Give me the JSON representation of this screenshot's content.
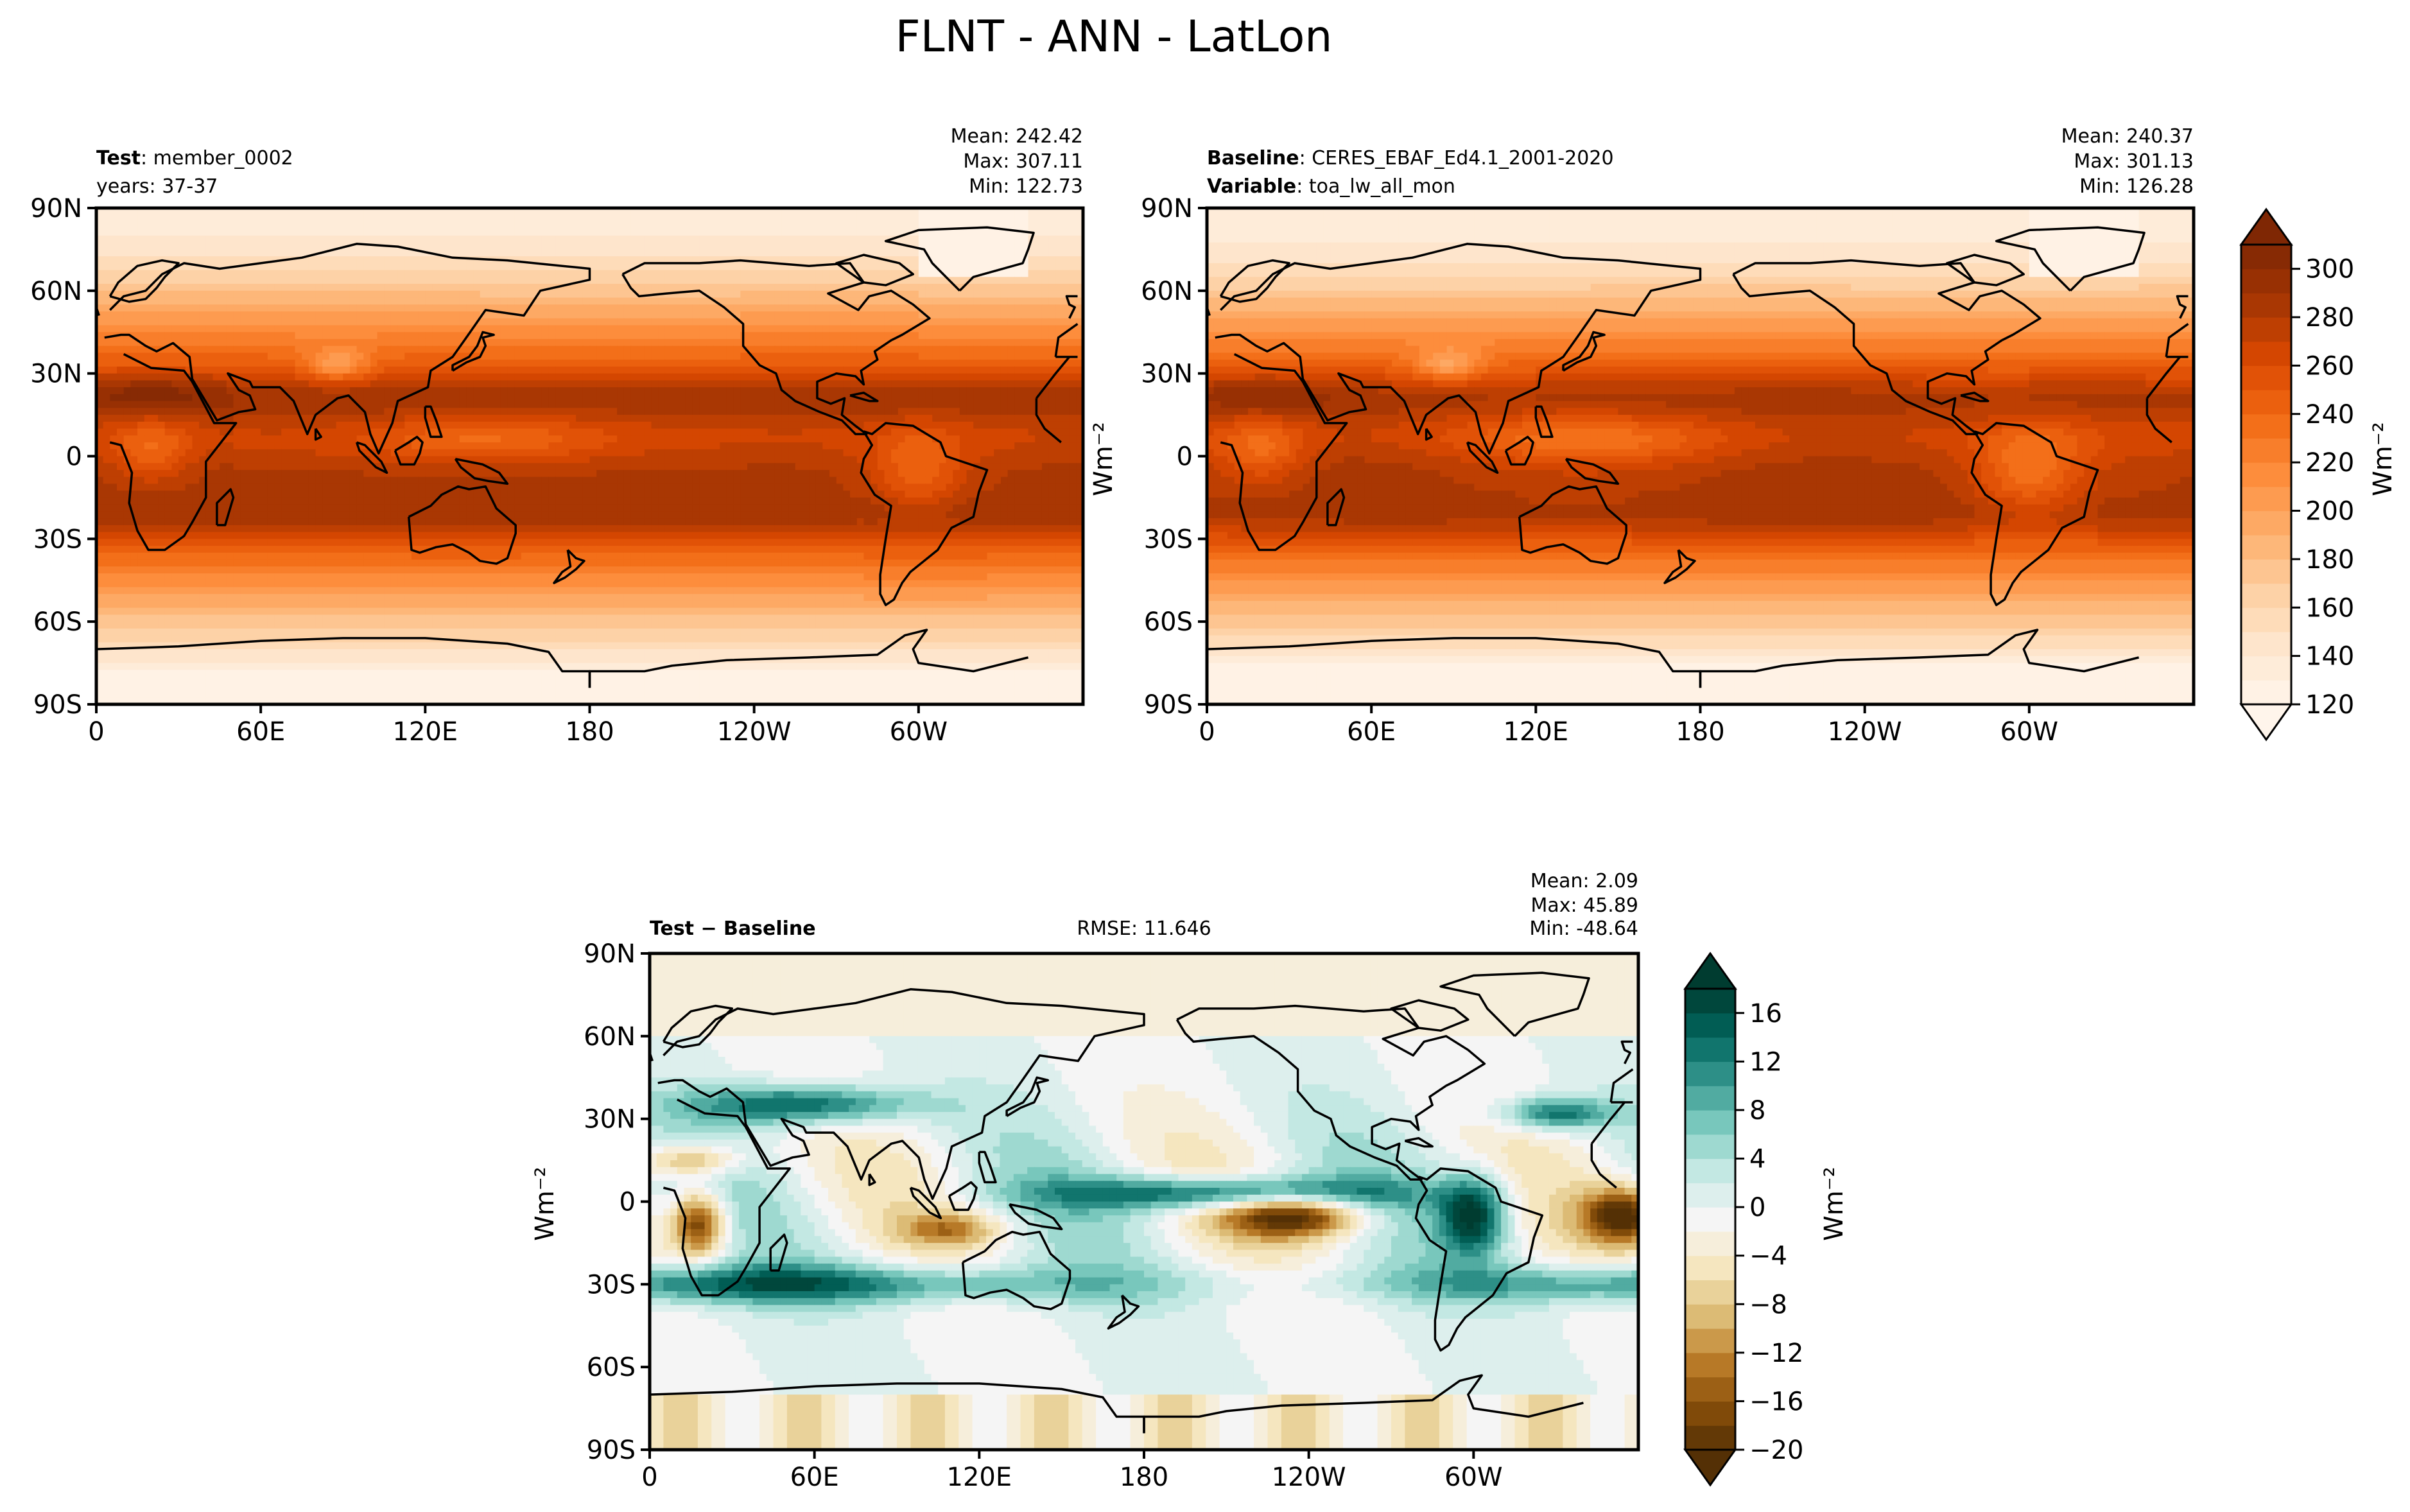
{
  "figure_title": "FLNT - ANN - LatLon",
  "chart_data": [
    {
      "type": "heatmap",
      "name": "test-map",
      "title_bold": "Test",
      "title_rest": ": member_0002",
      "subtitle": "years: 37-37",
      "stats": [
        "Mean: 242.42",
        "Max: 307.11",
        "Min: 122.73"
      ],
      "x_ticks": [
        "0",
        "60E",
        "120E",
        "180",
        "120W",
        "60W"
      ],
      "y_ticks": [
        "90N",
        "60N",
        "30N",
        "0",
        "30S",
        "60S",
        "90S"
      ],
      "field": "abs",
      "mean": 242.42,
      "max": 307.11,
      "min": 122.73
    },
    {
      "type": "heatmap",
      "name": "baseline-map",
      "title_bold": "Baseline",
      "title_rest": ": CERES_EBAF_Ed4.1_2001-2020",
      "subtitle_bold": "Variable",
      "subtitle_rest": ": toa_lw_all_mon",
      "stats": [
        "Mean: 240.37",
        "Max: 301.13",
        "Min: 126.28"
      ],
      "x_ticks": [
        "0",
        "60E",
        "120E",
        "180",
        "120W",
        "60W"
      ],
      "y_ticks": [
        "90N",
        "60N",
        "30N",
        "0",
        "30S",
        "60S",
        "90S"
      ],
      "field": "abs",
      "mean": 240.37,
      "max": 301.13,
      "min": 126.28
    },
    {
      "type": "heatmap",
      "name": "diff-map",
      "title_bold": "Test − Baseline",
      "rmse": "RMSE: 11.646",
      "stats": [
        "Mean:  2.09",
        "Max: 45.89",
        "Min: -48.64"
      ],
      "x_ticks": [
        "0",
        "60E",
        "120E",
        "180",
        "120W",
        "60W"
      ],
      "y_ticks": [
        "90N",
        "60N",
        "30N",
        "0",
        "30S",
        "60S",
        "90S"
      ],
      "field": "diff",
      "mean": 2.09,
      "max": 45.89,
      "min": -48.64
    }
  ],
  "colorbar_main": {
    "ticks": [
      "120",
      "140",
      "160",
      "180",
      "200",
      "220",
      "240",
      "260",
      "280",
      "300"
    ],
    "range": [
      120,
      310
    ],
    "colors": [
      "#fff5eb",
      "#fee6ce",
      "#fdd0a2",
      "#fdae6b",
      "#fd8d3c",
      "#f16913",
      "#d94801",
      "#a63603",
      "#7f2704"
    ],
    "extend": "both",
    "unit": "Wm⁻²"
  },
  "colorbar_diff": {
    "ticks": [
      "16",
      "12",
      "8",
      "4",
      "0",
      "−4",
      "−8",
      "−12",
      "−16",
      "−20"
    ],
    "range": [
      -20,
      18
    ],
    "colors": [
      "#543005",
      "#8c510a",
      "#bf812d",
      "#dfc27d",
      "#f6e8c3",
      "#f5f5f5",
      "#c7eae5",
      "#80cdc1",
      "#35978f",
      "#01665e",
      "#003c30"
    ],
    "extend": "both",
    "unit": "Wm⁻²"
  },
  "left_unit_label": "Wm⁻²"
}
